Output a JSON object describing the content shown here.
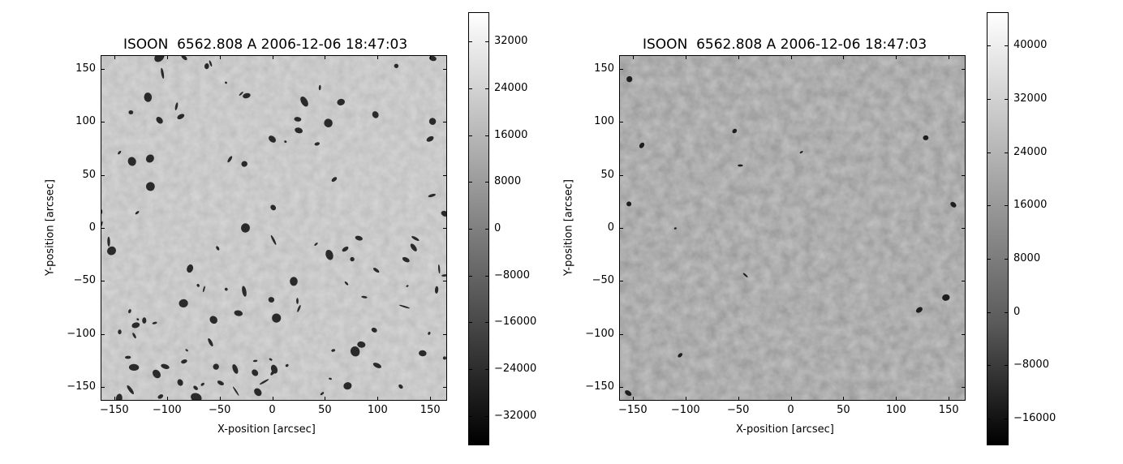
{
  "panels": [
    {
      "title": "ISOON  6562.808 A 2006-12-06 18:47:03",
      "xlabel": "X-position [arcsec]",
      "ylabel": "Y-position [arcsec]",
      "xticks": [
        "−150",
        "−100",
        "−50",
        "0",
        "50",
        "100",
        "150"
      ],
      "yticks": [
        "150",
        "100",
        "50",
        "0",
        "−50",
        "−100",
        "−150"
      ],
      "colorbar_ticks": [
        "32000",
        "24000",
        "16000",
        "8000",
        "0",
        "−8000",
        "−16000",
        "−24000",
        "−32000"
      ],
      "xlim": [
        -163,
        166
      ],
      "ylim": [
        -163,
        163
      ],
      "colorbar_range": [
        -37000,
        37000
      ]
    },
    {
      "title": "ISOON  6562.808 A 2006-12-06 18:47:03",
      "xlabel": "X-position [arcsec]",
      "ylabel": "Y-position [arcsec]",
      "xticks": [
        "−150",
        "−100",
        "−50",
        "0",
        "50",
        "100",
        "150"
      ],
      "yticks": [
        "150",
        "100",
        "50",
        "0",
        "−50",
        "−100",
        "−150"
      ],
      "colorbar_ticks": [
        "40000",
        "32000",
        "24000",
        "16000",
        "8000",
        "0",
        "−8000",
        "−16000"
      ],
      "xlim": [
        -163,
        166
      ],
      "ylim": [
        -163,
        163
      ],
      "colorbar_range": [
        -20000,
        45000
      ]
    }
  ],
  "image_colormap": "gray"
}
